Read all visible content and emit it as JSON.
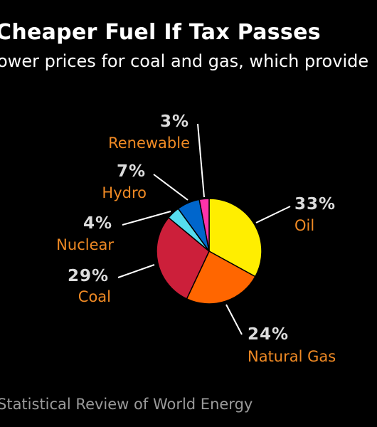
{
  "header": {
    "title": "Cheaper Fuel If Tax Passes",
    "subtitle": "ower prices for coal and gas, which provide"
  },
  "footer": {
    "source": "Statistical Review of World Energy"
  },
  "chart_data": {
    "type": "pie",
    "title": "Cheaper Fuel If Tax Passes",
    "start_angle_deg": 0,
    "direction": "clockwise",
    "slices": [
      {
        "label": "Oil",
        "value": 33,
        "display": "33%",
        "color": "#ffee00"
      },
      {
        "label": "Natural Gas",
        "value": 24,
        "display": "24%",
        "color": "#ff6600"
      },
      {
        "label": "Coal",
        "value": 29,
        "display": "29%",
        "color": "#cc1f3a"
      },
      {
        "label": "Nuclear",
        "value": 4,
        "display": "4%",
        "color": "#55ddee"
      },
      {
        "label": "Hydro",
        "value": 7,
        "display": "7%",
        "color": "#0066cc"
      },
      {
        "label": "Renewable",
        "value": 3,
        "display": "3%",
        "color": "#ff33aa"
      }
    ]
  }
}
